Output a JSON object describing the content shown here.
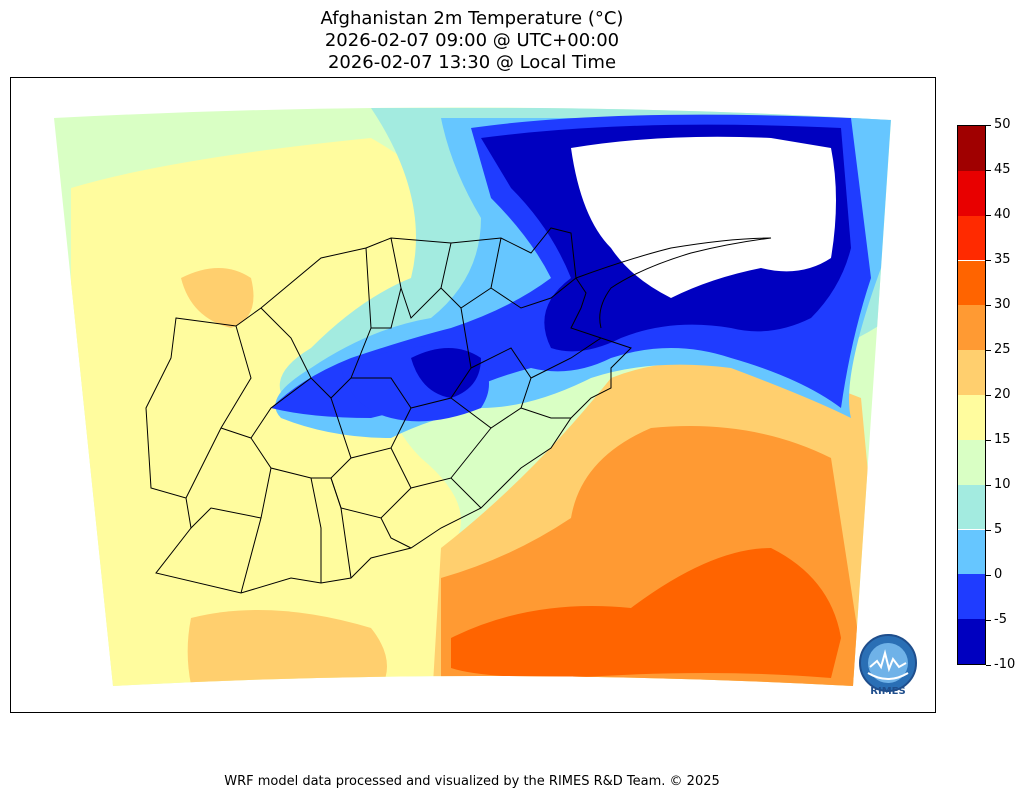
{
  "title": {
    "line1": "Afghanistan 2m Temperature (°C)",
    "line2": "2026-02-07 09:00 @ UTC+00:00",
    "line3": "2026-02-07 13:30 @ Local Time"
  },
  "colorbar": {
    "levels": [
      -10,
      -5,
      0,
      5,
      10,
      15,
      20,
      25,
      30,
      35,
      40,
      45,
      50
    ],
    "labels": [
      "-10",
      "-5",
      "0",
      "5",
      "10",
      "15",
      "20",
      "25",
      "30",
      "35",
      "40",
      "45",
      "50"
    ],
    "colors": [
      "#0000c0",
      "#1f3cff",
      "#66c6ff",
      "#a3ebe0",
      "#d9ffc4",
      "#fffc9e",
      "#ffcf6e",
      "#ff9a33",
      "#ff6400",
      "#ff2a00",
      "#e80000",
      "#a00000"
    ]
  },
  "colors": {
    "land_outline": "#000000",
    "below_min": "#ffffff"
  },
  "logo": {
    "text": "RIMES"
  },
  "footer": "WRF model data processed and visualized by the RIMES R&D Team. © 2025"
}
